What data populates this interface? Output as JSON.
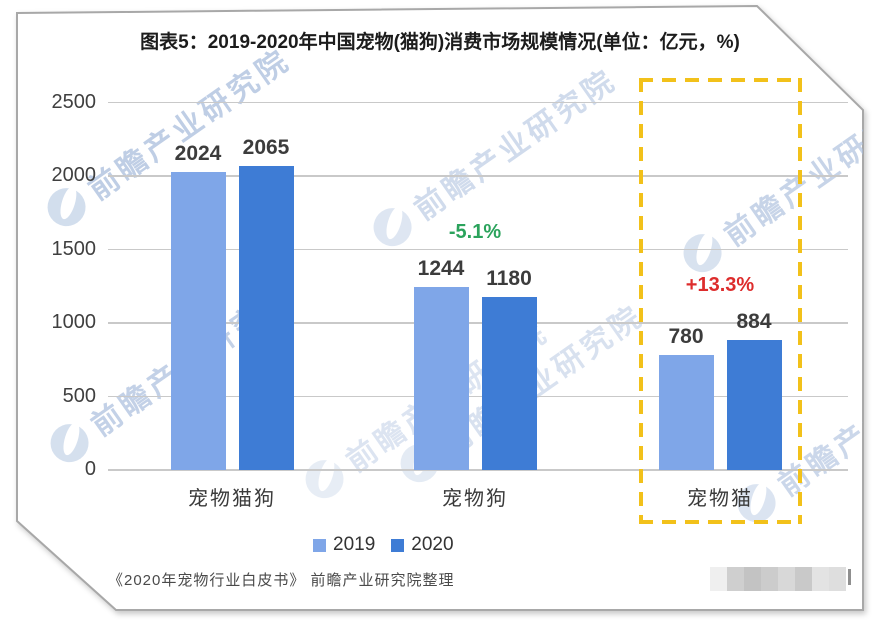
{
  "page": {
    "title": "图表5：2019-2020年中国宠物(猫狗)消费市场规模情况(单位：亿元，%)",
    "source": "《2020年宠物行业白皮书》 前瞻产业研究院整理",
    "watermark_text": "前瞻产业研究院",
    "colors": {
      "series_2019": "#7fa6e8",
      "series_2020": "#3e7cd5",
      "highlight_dash": "#f2c11a",
      "annotation_negative": "#2ba35c",
      "annotation_positive": "#dd2c2c",
      "gridline": "#c9c9c9"
    }
  },
  "chart_data": {
    "type": "bar",
    "title": "图表5：2019-2020年中国宠物(猫狗)消费市场规模情况(单位：亿元，%)",
    "categories": [
      "宠物猫狗",
      "宠物狗",
      "宠物猫"
    ],
    "series": [
      {
        "name": "2019",
        "color": "#7fa6e8",
        "values": [
          2024,
          1244,
          780
        ]
      },
      {
        "name": "2020",
        "color": "#3e7cd5",
        "values": [
          2065,
          1180,
          884
        ]
      }
    ],
    "annotations": [
      {
        "category": "宠物狗",
        "text": "-5.1%",
        "color": "#2ba35c"
      },
      {
        "category": "宠物猫",
        "text": "+13.3%",
        "color": "#dd2c2c"
      }
    ],
    "highlight_box_category": "宠物猫",
    "xlabel": "",
    "ylabel": "",
    "ylim": [
      0,
      2500
    ],
    "yticks": [
      0,
      500,
      1000,
      1500,
      2000,
      2500
    ],
    "grid": true,
    "legend_position": "bottom"
  }
}
